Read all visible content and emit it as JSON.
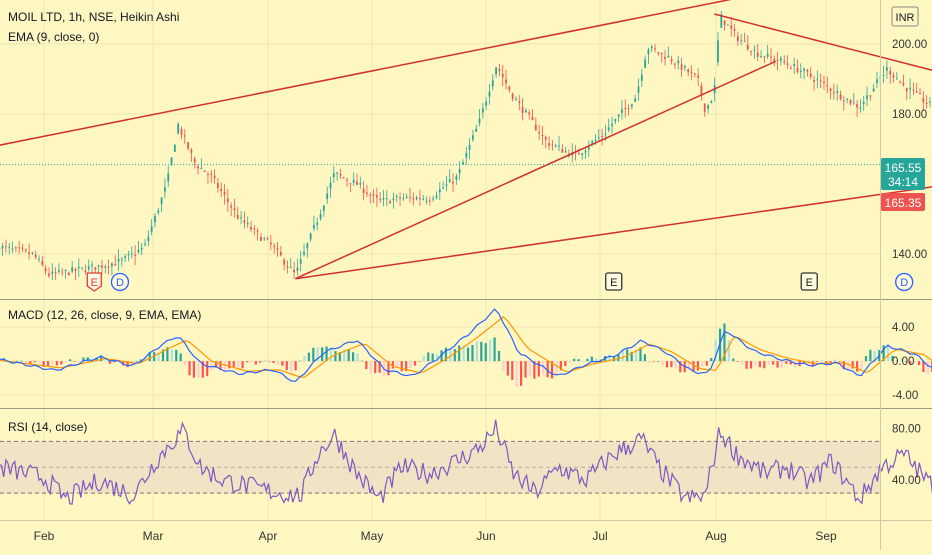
{
  "colors": {
    "background": "#fff7c2",
    "up_candle": "#26a69a",
    "down_candle": "#ef5350",
    "trendline": "#d32f2f",
    "macd_line": "#2962ff",
    "signal_line": "#ff9800",
    "rsi_line": "#7e57c2",
    "rsi_band": "#eadcc4",
    "axis_text": "#333333",
    "last_price_up": "#26a69a",
    "last_price_down": "#ef5350"
  },
  "header": {
    "title": "MOIL LTD, 1h, NSE, Heikin Ashi",
    "ema_label": "EMA (9, close, 0)",
    "currency": "INR"
  },
  "price_badges": {
    "last_price": "165.55",
    "countdown": "34:14",
    "second_price": "165.35"
  },
  "event_markers": [
    {
      "label": "E",
      "type": "earnings-red",
      "month_pos": 0.45
    },
    {
      "label": "D",
      "type": "dividend",
      "month_pos": 0.68
    },
    {
      "label": "E",
      "type": "earnings",
      "month_pos": 5.1
    },
    {
      "label": "E",
      "type": "earnings",
      "month_pos": 6.85
    },
    {
      "label": "D",
      "type": "dividend",
      "month_pos": 7.7
    }
  ],
  "macd": {
    "label": "MACD (12, 26, close, 9, EMA, EMA)"
  },
  "rsi": {
    "label": "RSI (14, close)"
  },
  "chart_data": [
    {
      "type": "candlestick",
      "title": "MOIL LTD, 1h, NSE, Heikin Ashi",
      "x_ticks": [
        "Feb",
        "Mar",
        "Apr",
        "May",
        "Jun",
        "Jul",
        "Aug",
        "Sep"
      ],
      "y_ticks": [
        "200.00",
        "180.00",
        "140.00"
      ],
      "y_tick_values": [
        200,
        180,
        140
      ],
      "ylim": [
        127.5,
        212.5
      ],
      "anchors": [
        [
          -0.4,
          142
        ],
        [
          -0.1,
          140
        ],
        [
          0.05,
          134
        ],
        [
          0.4,
          136
        ],
        [
          0.7,
          138
        ],
        [
          0.9,
          142
        ],
        [
          1.1,
          160
        ],
        [
          1.2,
          177
        ],
        [
          1.35,
          166
        ],
        [
          1.5,
          162
        ],
        [
          1.75,
          150
        ],
        [
          2.05,
          142
        ],
        [
          2.25,
          134
        ],
        [
          2.45,
          150
        ],
        [
          2.6,
          163
        ],
        [
          2.8,
          160
        ],
        [
          3.0,
          155
        ],
        [
          3.2,
          156
        ],
        [
          3.45,
          156
        ],
        [
          3.7,
          162
        ],
        [
          3.9,
          178
        ],
        [
          4.05,
          194
        ],
        [
          4.2,
          185
        ],
        [
          4.5,
          172
        ],
        [
          4.75,
          168
        ],
        [
          5.0,
          174
        ],
        [
          5.3,
          185
        ],
        [
          5.4,
          199
        ],
        [
          5.6,
          196
        ],
        [
          5.85,
          190
        ],
        [
          5.92,
          181
        ],
        [
          6.0,
          186
        ],
        [
          6.05,
          208
        ],
        [
          6.2,
          202
        ],
        [
          6.4,
          197
        ],
        [
          6.6,
          195
        ],
        [
          6.8,
          192
        ],
        [
          7.1,
          186
        ],
        [
          7.3,
          182
        ],
        [
          7.55,
          193
        ],
        [
          7.7,
          188
        ],
        [
          7.95,
          182
        ],
        [
          8.1,
          175
        ],
        [
          8.25,
          183
        ],
        [
          8.45,
          171
        ],
        [
          8.7,
          162
        ],
        [
          8.9,
          163
        ],
        [
          9.2,
          170
        ],
        [
          9.4,
          177
        ],
        [
          9.55,
          172
        ],
        [
          9.65,
          165.5
        ]
      ],
      "trendlines": [
        {
          "from": [
            -1.2,
            166
          ],
          "to": [
            6.2,
            213
          ]
        },
        {
          "from": [
            2.25,
            133
          ],
          "to": [
            6.55,
            195
          ]
        },
        {
          "from": [
            6.0,
            208.5
          ],
          "to": [
            9.65,
            178.5
          ]
        },
        {
          "from": [
            2.25,
            133
          ],
          "to": [
            9.65,
            167
          ]
        }
      ],
      "last_price": 165.55
    },
    {
      "type": "line",
      "title": "MACD (12, 26, close, 9, EMA, EMA)",
      "y_ticks": [
        "4.00",
        "0.00",
        "-4.00"
      ],
      "y_tick_values": [
        4,
        0,
        -4
      ],
      "ylim": [
        -5.4,
        7.2
      ],
      "series": [
        {
          "name": "MACD",
          "anchors": [
            [
              -0.4,
              0.2
            ],
            [
              0.1,
              -1.1
            ],
            [
              0.5,
              0.5
            ],
            [
              0.8,
              -0.6
            ],
            [
              1.05,
              1.9
            ],
            [
              1.2,
              3.0
            ],
            [
              1.4,
              -0.3
            ],
            [
              1.75,
              -1.5
            ],
            [
              2.05,
              -1.0
            ],
            [
              2.25,
              -2.5
            ],
            [
              2.5,
              1.0
            ],
            [
              2.8,
              2.5
            ],
            [
              3.05,
              -1.0
            ],
            [
              3.3,
              -1.8
            ],
            [
              3.55,
              0.6
            ],
            [
              3.8,
              3.2
            ],
            [
              4.05,
              6.2
            ],
            [
              4.25,
              1.0
            ],
            [
              4.6,
              -1.8
            ],
            [
              4.85,
              -0.4
            ],
            [
              5.1,
              0.6
            ],
            [
              5.35,
              2.4
            ],
            [
              5.55,
              1.2
            ],
            [
              5.8,
              -1.2
            ],
            [
              5.95,
              -1.5
            ],
            [
              6.1,
              3.7
            ],
            [
              6.35,
              1.2
            ],
            [
              6.6,
              0.2
            ],
            [
              6.85,
              -0.5
            ],
            [
              7.1,
              -0.2
            ],
            [
              7.3,
              -1.8
            ],
            [
              7.55,
              1.8
            ],
            [
              7.8,
              0.8
            ],
            [
              8.05,
              -1.9
            ],
            [
              8.3,
              0.7
            ],
            [
              8.5,
              -1.6
            ],
            [
              8.7,
              -3.0
            ],
            [
              8.95,
              -0.8
            ],
            [
              9.2,
              1.0
            ],
            [
              9.45,
              2.2
            ],
            [
              9.6,
              -0.3
            ],
            [
              9.7,
              -2.0
            ],
            [
              9.85,
              -1.3
            ]
          ]
        },
        {
          "name": "Signal",
          "anchors": [
            [
              -0.4,
              0.1
            ],
            [
              0.15,
              -0.8
            ],
            [
              0.55,
              0.3
            ],
            [
              0.85,
              -0.3
            ],
            [
              1.1,
              1.4
            ],
            [
              1.28,
              2.5
            ],
            [
              1.5,
              0.0
            ],
            [
              1.82,
              -1.2
            ],
            [
              2.1,
              -1.0
            ],
            [
              2.32,
              -2.0
            ],
            [
              2.58,
              0.6
            ],
            [
              2.87,
              2.1
            ],
            [
              3.12,
              -0.6
            ],
            [
              3.38,
              -1.4
            ],
            [
              3.62,
              0.4
            ],
            [
              3.88,
              2.8
            ],
            [
              4.12,
              5.3
            ],
            [
              4.33,
              1.5
            ],
            [
              4.68,
              -1.3
            ],
            [
              4.92,
              -0.3
            ],
            [
              5.18,
              0.4
            ],
            [
              5.42,
              2.0
            ],
            [
              5.62,
              1.1
            ],
            [
              5.87,
              -0.9
            ],
            [
              6.02,
              -1.1
            ],
            [
              6.18,
              3.0
            ],
            [
              6.42,
              1.3
            ],
            [
              6.67,
              0.3
            ],
            [
              6.92,
              -0.3
            ],
            [
              7.17,
              -0.2
            ],
            [
              7.37,
              -1.4
            ],
            [
              7.62,
              1.4
            ],
            [
              7.87,
              0.8
            ],
            [
              8.12,
              -1.5
            ],
            [
              8.37,
              0.4
            ],
            [
              8.57,
              -1.3
            ],
            [
              8.77,
              -2.5
            ],
            [
              9.02,
              -0.9
            ],
            [
              9.27,
              0.7
            ],
            [
              9.52,
              1.9
            ],
            [
              9.67,
              0.2
            ],
            [
              9.77,
              -1.5
            ],
            [
              9.85,
              -1.6
            ]
          ]
        }
      ]
    },
    {
      "type": "line",
      "title": "RSI (14, close)",
      "y_ticks": [
        "80.00",
        "40.00"
      ],
      "y_tick_values": [
        80,
        40
      ],
      "ylim": [
        10,
        95
      ],
      "band": [
        30,
        70
      ],
      "anchors": [
        [
          -0.4,
          50
        ],
        [
          0.0,
          42
        ],
        [
          0.2,
          25
        ],
        [
          0.5,
          40
        ],
        [
          0.8,
          28
        ],
        [
          1.0,
          55
        ],
        [
          1.15,
          70
        ],
        [
          1.25,
          78
        ],
        [
          1.4,
          50
        ],
        [
          1.6,
          40
        ],
        [
          1.85,
          35
        ],
        [
          2.1,
          30
        ],
        [
          2.3,
          28
        ],
        [
          2.45,
          60
        ],
        [
          2.6,
          75
        ],
        [
          2.8,
          45
        ],
        [
          3.0,
          25
        ],
        [
          3.2,
          50
        ],
        [
          3.45,
          45
        ],
        [
          3.7,
          55
        ],
        [
          3.9,
          65
        ],
        [
          4.05,
          80
        ],
        [
          4.2,
          45
        ],
        [
          4.4,
          30
        ],
        [
          4.6,
          50
        ],
        [
          4.85,
          40
        ],
        [
          5.1,
          60
        ],
        [
          5.35,
          72
        ],
        [
          5.5,
          50
        ],
        [
          5.75,
          25
        ],
        [
          5.92,
          28
        ],
        [
          6.05,
          78
        ],
        [
          6.2,
          60
        ],
        [
          6.45,
          45
        ],
        [
          6.65,
          50
        ],
        [
          6.85,
          38
        ],
        [
          7.05,
          55
        ],
        [
          7.3,
          25
        ],
        [
          7.5,
          50
        ],
        [
          7.7,
          60
        ],
        [
          7.9,
          40
        ],
        [
          8.1,
          25
        ],
        [
          8.3,
          55
        ],
        [
          8.5,
          35
        ],
        [
          8.7,
          25
        ],
        [
          8.95,
          40
        ],
        [
          9.2,
          55
        ],
        [
          9.35,
          72
        ],
        [
          9.5,
          80
        ],
        [
          9.6,
          55
        ],
        [
          9.72,
          22
        ],
        [
          9.85,
          45
        ]
      ]
    }
  ]
}
